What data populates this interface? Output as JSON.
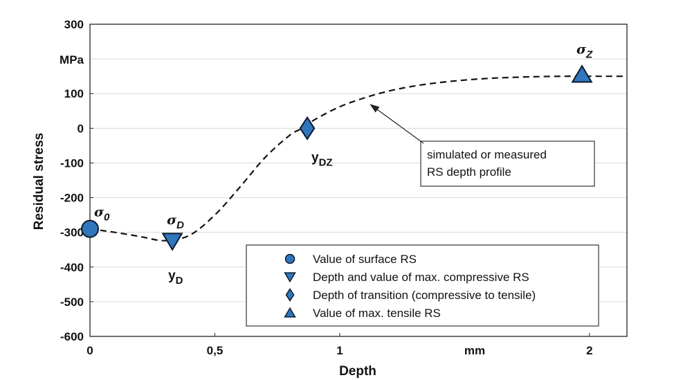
{
  "chart_data": {
    "type": "line",
    "xlabel": "Depth",
    "ylabel": "Residual stress",
    "x_unit_label": "mm",
    "y_unit_label": "MPa",
    "xlim": [
      0,
      2.15
    ],
    "ylim": [
      -600,
      300
    ],
    "x_ticks": [
      {
        "value": 0,
        "label": "0"
      },
      {
        "value": 0.5,
        "label": "0,5"
      },
      {
        "value": 1,
        "label": "1"
      },
      {
        "value": 2,
        "label": "2"
      }
    ],
    "y_ticks": [
      {
        "value": 300,
        "label": "300"
      },
      {
        "value": 100,
        "label": "100"
      },
      {
        "value": 0,
        "label": "0"
      },
      {
        "value": -100,
        "label": "-100"
      },
      {
        "value": -200,
        "label": "-200"
      },
      {
        "value": -300,
        "label": "-300"
      },
      {
        "value": -400,
        "label": "-400"
      },
      {
        "value": -500,
        "label": "-500"
      },
      {
        "value": -600,
        "label": "-600"
      }
    ],
    "grid": "horizontal",
    "series": [
      {
        "style": "dashed",
        "x": [
          0,
          0.1,
          0.2,
          0.3,
          0.4,
          0.5,
          0.6,
          0.7,
          0.8,
          0.85,
          0.9,
          1.0,
          1.1,
          1.2,
          1.3,
          1.4,
          1.5,
          1.6,
          1.7,
          1.8,
          1.9,
          2.0,
          2.15
        ],
        "y": [
          -290,
          -300,
          -312,
          -324,
          -308,
          -250,
          -170,
          -85,
          -20,
          0,
          25,
          62,
          88,
          108,
          122,
          132,
          139,
          144,
          147,
          149,
          150,
          150,
          150
        ]
      }
    ],
    "markers": [
      {
        "shape": "circle",
        "x": 0,
        "y": -290,
        "label": "σ",
        "sub": "0"
      },
      {
        "shape": "triangle-down",
        "x": 0.33,
        "y": -325,
        "label": "σ",
        "sub": "D",
        "label2": "y",
        "sub2": "D"
      },
      {
        "shape": "diamond",
        "x": 0.87,
        "y": 0,
        "label": "y",
        "sub": "DZ"
      },
      {
        "shape": "triangle-up",
        "x": 1.97,
        "y": 155,
        "label": "σ",
        "sub": "Z"
      }
    ],
    "annotation": {
      "lines": [
        "simulated or measured",
        "RS depth profile"
      ],
      "arrow_to": {
        "x": 1.12,
        "y": 70
      }
    },
    "legend": {
      "position": "bottom-right",
      "entries": [
        {
          "shape": "circle",
          "text": "Value of surface RS"
        },
        {
          "shape": "triangle-down",
          "text": "Depth and value of max. compressive RS"
        },
        {
          "shape": "diamond",
          "text": "Depth of transition (compressive to tensile)"
        },
        {
          "shape": "triangle-up",
          "text": "Value of max. tensile RS"
        }
      ]
    },
    "colors": {
      "marker_fill": "#2f76bd",
      "marker_edge": "#0d1a2b",
      "line": "#111111",
      "grid": "#d9d9d9"
    }
  }
}
